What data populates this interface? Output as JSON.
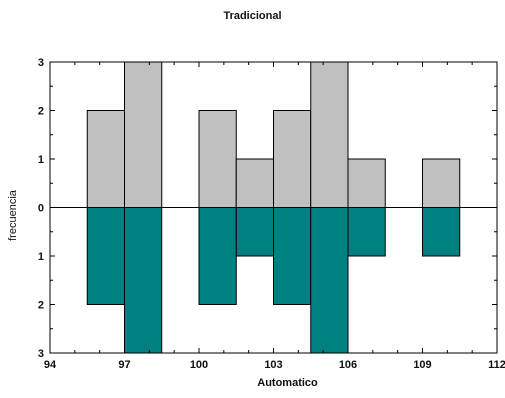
{
  "chart_data": {
    "type": "bar",
    "subtype": "back-to-back histogram",
    "title": "Tradicional",
    "xlabel": "Automatico",
    "ylabel": "frecuencia",
    "xlim": [
      94,
      112
    ],
    "ylim": [
      -3,
      3
    ],
    "x_ticks": [
      94,
      97,
      100,
      103,
      106,
      109,
      112
    ],
    "x_tick_labels": [
      "94",
      "97",
      "100",
      "103",
      "106",
      "109",
      "112"
    ],
    "y_ticks": [
      3,
      2,
      1,
      0,
      -1,
      -2,
      -3
    ],
    "y_tick_labels": [
      "3",
      "2",
      "1",
      "0",
      "1",
      "2",
      "3"
    ],
    "bin_edges": [
      95.5,
      97,
      98.5,
      100,
      101.5,
      103,
      104.5,
      106,
      107.5,
      109,
      110.5
    ],
    "series": [
      {
        "name": "Tradicional",
        "position": "above",
        "color": "#c0c0c0",
        "values": [
          2,
          3,
          0,
          2,
          1,
          2,
          3,
          1,
          0,
          1
        ]
      },
      {
        "name": "Automatico",
        "position": "below",
        "color": "#008080",
        "values": [
          2,
          3,
          0,
          2,
          1,
          2,
          3,
          1,
          0,
          1
        ]
      }
    ],
    "grid": false,
    "legend": "none"
  }
}
